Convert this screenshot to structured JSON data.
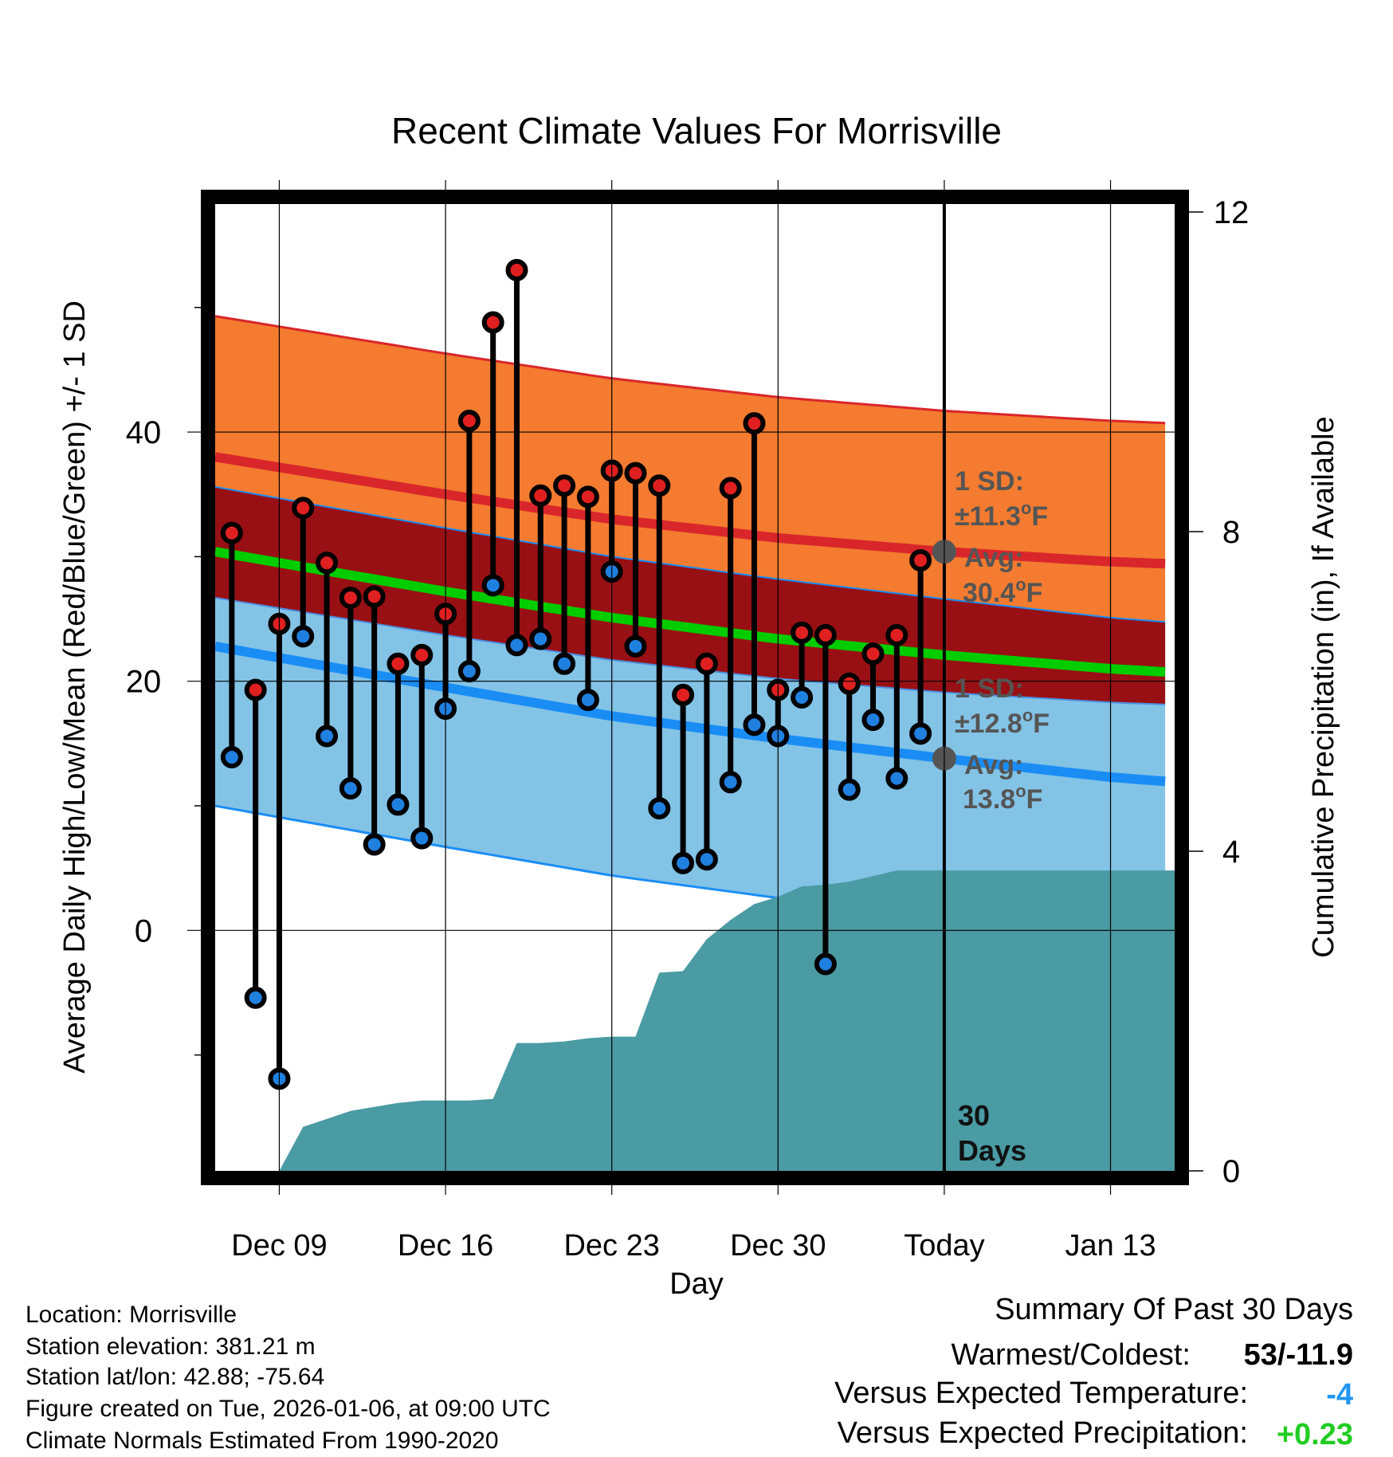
{
  "chart_data": {
    "type": "line",
    "title": "Recent Climate Values For Morrisville",
    "xlabel": "Day",
    "ylabel_left": "Average Daily High/Low/Mean (Red/Blue/Green) +/- 1 SD",
    "ylabel_right": "Cumulative Precipitation (in), If Available",
    "x_tick_labels": [
      "Dec 09",
      "Dec 16",
      "Dec 23",
      "Dec 30",
      "Today",
      "Jan 13"
    ],
    "x_tick_days": [
      0,
      7,
      14,
      21,
      28,
      35
    ],
    "x_range_days": [
      -2.7,
      37.7
    ],
    "y_left_ticks": [
      0,
      20,
      40
    ],
    "y_left_minor_ticks": [
      -10,
      10,
      30,
      50
    ],
    "y_left_range": [
      -19.3,
      58.3
    ],
    "y_right_ticks": [
      0,
      4,
      8,
      12
    ],
    "y_right_range": [
      0,
      12.1
    ],
    "today_day": 28,
    "normals_days": [
      -2.7,
      7,
      14,
      21,
      28,
      35,
      37.7
    ],
    "normal_high": [
      38.0,
      35.0,
      33.0,
      31.5,
      30.4,
      29.6,
      29.4
    ],
    "normal_high_sd": 11.3,
    "normal_low": [
      22.8,
      19.5,
      17.2,
      15.4,
      13.8,
      12.3,
      11.9
    ],
    "normal_low_sd": 12.8,
    "normal_mean": [
      30.4,
      27.2,
      25.1,
      23.4,
      22.1,
      21.0,
      20.7
    ],
    "days": [
      -2,
      -1,
      0,
      1,
      2,
      3,
      4,
      5,
      6,
      7,
      8,
      9,
      10,
      11,
      12,
      13,
      14,
      15,
      16,
      17,
      18,
      19,
      20,
      21,
      22,
      23,
      24,
      25,
      26,
      27
    ],
    "series": [
      {
        "name": "Daily High",
        "color": "#e02020",
        "values": [
          31.9,
          19.3,
          24.6,
          33.9,
          29.5,
          26.7,
          26.8,
          21.4,
          22.1,
          25.4,
          40.9,
          48.8,
          53.0,
          34.9,
          35.7,
          34.8,
          36.9,
          36.7,
          35.7,
          18.9,
          21.4,
          35.5,
          40.7,
          19.3,
          23.9,
          23.7,
          19.8,
          22.2,
          23.7,
          29.7
        ]
      },
      {
        "name": "Daily Low",
        "color": "#2080e0",
        "values": [
          13.9,
          -5.4,
          -11.9,
          23.6,
          15.6,
          11.4,
          6.9,
          10.1,
          7.4,
          17.8,
          20.8,
          27.7,
          22.9,
          23.4,
          21.4,
          18.5,
          28.8,
          22.8,
          9.8,
          5.4,
          5.7,
          11.9,
          16.5,
          15.6,
          18.7,
          -2.7,
          11.3,
          16.9,
          12.2,
          15.8
        ]
      }
    ],
    "precip_days": [
      0,
      1,
      3,
      5,
      6,
      7,
      8,
      9,
      10,
      11,
      12,
      13,
      14,
      15,
      16,
      17,
      18,
      19,
      20,
      21,
      22,
      23,
      24,
      25,
      26,
      27,
      28,
      37.7
    ],
    "precip_cumulative": [
      0.0,
      0.55,
      0.75,
      0.85,
      0.88,
      0.88,
      0.88,
      0.9,
      1.6,
      1.6,
      1.62,
      1.66,
      1.68,
      1.68,
      2.48,
      2.5,
      2.9,
      3.14,
      3.34,
      3.43,
      3.56,
      3.58,
      3.62,
      3.69,
      3.76,
      3.76,
      3.76,
      3.76
    ],
    "annotations": {
      "high_sd_line1": "1 SD:",
      "high_sd_line2": "±11.3",
      "high_avg_line1": "Avg:",
      "high_avg_line2": "30.4",
      "low_sd_line1": "1 SD:",
      "low_sd_line2": "±12.8",
      "low_avg_line1": "Avg:",
      "low_avg_line2": "13.8",
      "degree_symbol": "o",
      "unit_letter": "F",
      "period_number": "30",
      "period_unit": "Days"
    }
  },
  "station_info": {
    "location": "Location: Morrisville",
    "elevation": "Station elevation: 381.21 m",
    "latlon": "Station lat/lon: 42.88; -75.64",
    "created": "Figure created on Tue, 2026-01-06, at 09:00 UTC",
    "normals": "Climate Normals Estimated From 1990-2020"
  },
  "summary": {
    "title": "Summary Of Past 30 Days",
    "warm_cold_label": "Warmest/Coldest:",
    "warm_cold_value": "53/-11.9",
    "temp_label": "Versus Expected Temperature:",
    "temp_value": "-4",
    "temp_color": "#2196f3",
    "precip_label": "Versus Expected Precipitation:",
    "precip_value": "+0.23",
    "precip_color": "#22cc22"
  },
  "colors": {
    "high_band": "#f47b2f",
    "high_line": "#d9262b",
    "overlap_band": "#981014",
    "mean_line": "#00cc00",
    "low_band": "#83c3e6",
    "low_line": "#1a8df5",
    "precip_fill": "#4a9ba3",
    "annotation_text": "#555555"
  }
}
